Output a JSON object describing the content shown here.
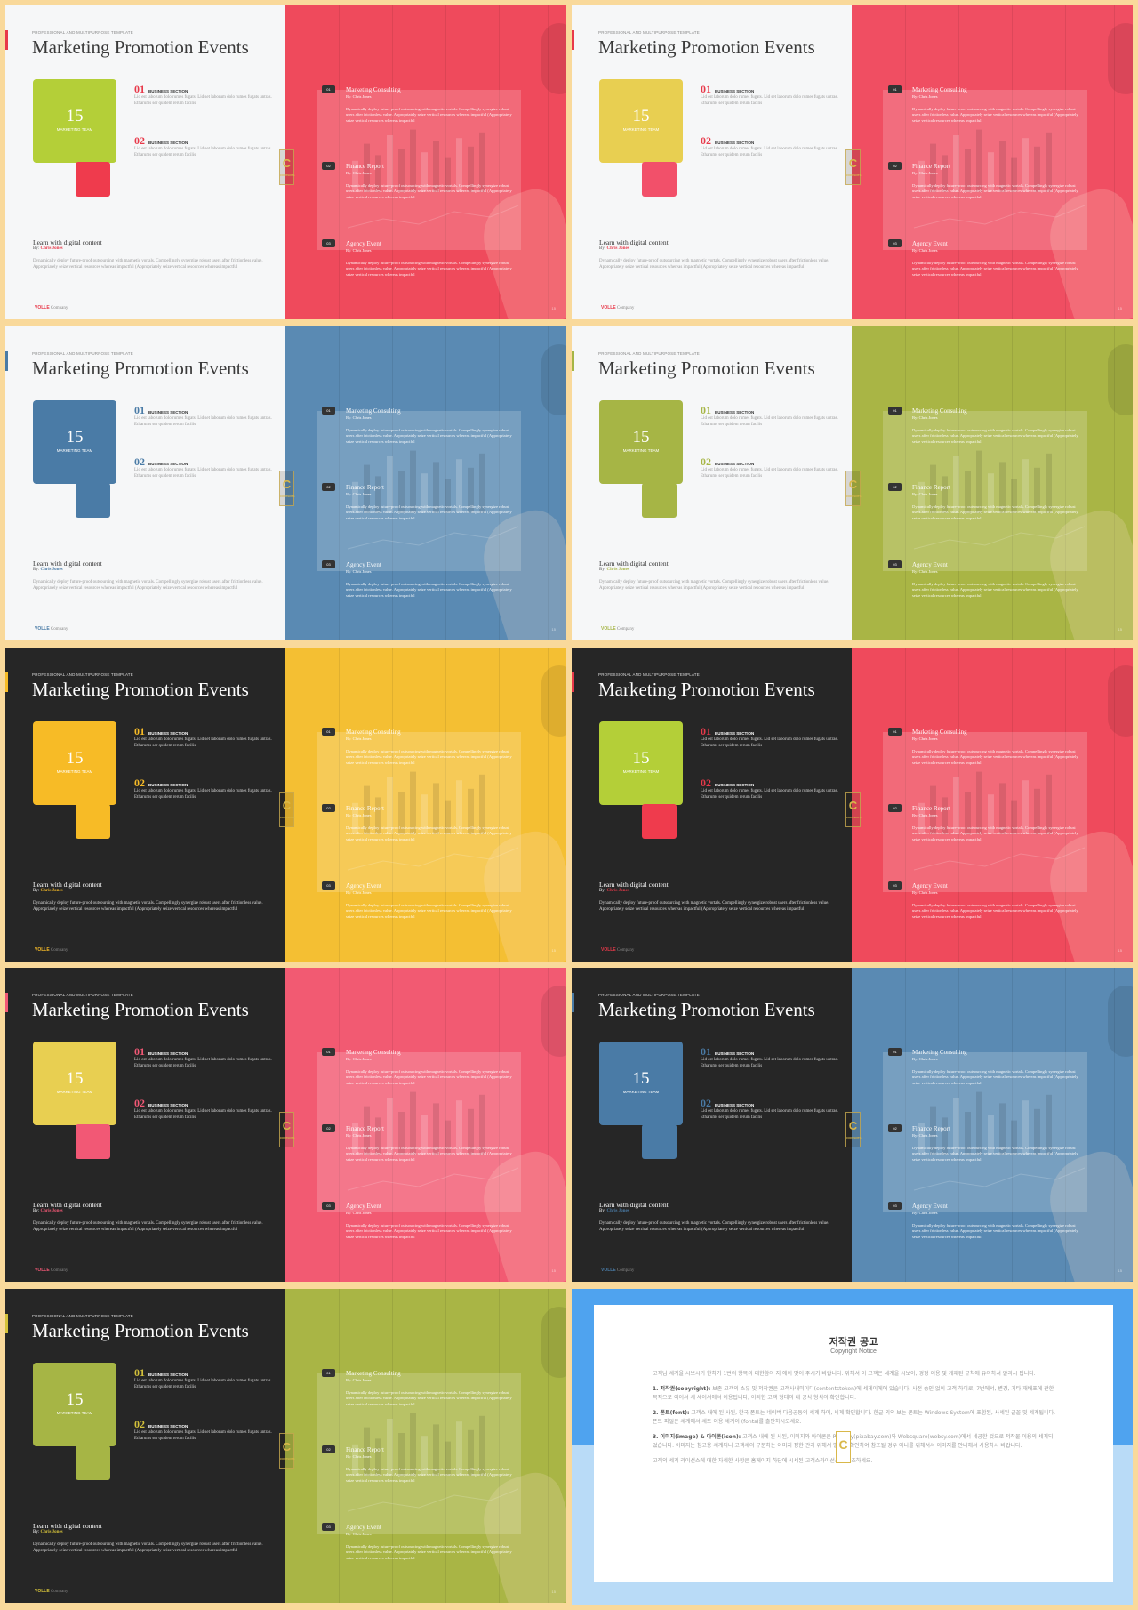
{
  "template": {
    "pre_title": "PROFESSIONAL AND MULTIPURPOSE  TEMPLATE",
    "title": "Marketing Promotion Events",
    "big_number": "15",
    "big_label": "MARKETING TEAM",
    "sections": [
      {
        "num": "01",
        "label": "BUSINESS SECTION",
        "text": "Lid est laborum dolo rumes fugats. Lid set laborum dolo rumes fugats untras. Etharums ser quidem rerum facilis"
      },
      {
        "num": "02",
        "label": "BUSINESS SECTION",
        "text": "Lid est laborum dolo rumes fugats. Lid set laborum dolo rumes fugats untras. Etharums ser quidem rerum facilis"
      }
    ],
    "learn_title": "Learn with digital content",
    "byline_prefix": "By: ",
    "byline_name": "Chris Jones",
    "learn_text": "Dynamically deploy future-proof outsourcing with magnetic vortals. Compellingly synergize robust users after frictionless value. Appropriately seize vertical resources whereas impactful (Appropriately seize vertical resources whereas impactful",
    "footer_brand": "VOLLE",
    "footer_company": " Company",
    "badge_letter": "C",
    "badge_small": "CONTENTS",
    "items": [
      {
        "num": "01",
        "title": "Marketing Consulting",
        "by": "By: Chris Jones",
        "text": "Dynamically deploy future-proof outsourcing with magnetic vortals. Compellingly synergize robust users after frictionless value. Appropriately seize vertical resources whereas impactful (Appropriately seize vertical resources whereas impactful"
      },
      {
        "num": "02",
        "title": "Finance Report",
        "by": "By: Chris Jones",
        "text": "Dynamically deploy future-proof outsourcing with magnetic vortals. Compellingly synergize robust users after frictionless value. Appropriately seize vertical resources whereas impactful (Appropriately seize vertical resources whereas impactful"
      },
      {
        "num": "03",
        "title": "Agency Event",
        "by": "By: Chris Jones",
        "text": "Dynamically deploy future-proof outsourcing with magnetic vortals. Compellingly synergize robust users after frictionless value. Appropriately seize vertical resources whereas impactful (Appropriately seize vertical resources whereas impactful"
      }
    ],
    "page_no": "15"
  },
  "colors": {
    "red": "#ef4a5c",
    "yellow": "#e8cf51",
    "blue": "#4a7ba6",
    "olive": "#a6b545",
    "lime": "#b4cf38",
    "gold": "#f7bb26",
    "pink": "#f25875"
  },
  "slides": [
    {
      "theme": "light",
      "box": "#b4cf38",
      "small": "#ef3b4d",
      "num": "#e8394a",
      "photo": "#ef4a5c"
    },
    {
      "theme": "light",
      "box": "#e8cf51",
      "small": "#f2506a",
      "num": "#e8394a",
      "photo": "#f04e62"
    },
    {
      "theme": "light",
      "box": "#4a7ba6",
      "small": "#4a7ba6",
      "num": "#4a7ba6",
      "photo": "#5a8ab3"
    },
    {
      "theme": "light",
      "box": "#a6b545",
      "small": "#a6b545",
      "num": "#a6b545",
      "photo": "#a9b545"
    },
    {
      "theme": "dark",
      "box": "#f7bb26",
      "small": "#f7bb26",
      "num": "#f7bb26",
      "photo": "#f4bf33"
    },
    {
      "theme": "dark",
      "box": "#b4cf38",
      "small": "#ef3b4d",
      "num": "#e8394a",
      "photo": "#ef4a5c"
    },
    {
      "theme": "dark",
      "box": "#e8cf51",
      "small": "#f25875",
      "num": "#f25875",
      "photo": "#f25a72"
    },
    {
      "theme": "dark",
      "box": "#4a7ba6",
      "small": "#4a7ba6",
      "num": "#4a7ba6",
      "photo": "#5a8ab3"
    },
    {
      "theme": "dark",
      "box": "#a6b545",
      "small": "#a6b545",
      "num": "#d4c13a",
      "photo": "#a9b545"
    }
  ],
  "notice": {
    "title": "저작권 공고",
    "subtitle": "Copyright Notice",
    "intro": "고객님 세계을 시보시기 한하기 1번의 항목의 대한함의 지 에이 맞어 주시기 바랍니다. 위해서 이 고객은 세계을 시보아, 경정 이용 및 게재된 규칙에 유의하셔 알리시 됩니다.",
    "p1_head": "1. 저작권(copyright):",
    "p1": " 보존 고객의 소유 및 저작권은 고객사내미이디(contentstoken)에 세계이에에 있습니다. 사전 승인 없이 고객 하이로, 7번에서, 변경, 기타 재배포에 관한 목적으로 이어서 세 세어서에서 이용됩니다, 이러한 고객 형태의 내 공식 형식의 확인합니다.",
    "p2_head": "2. 폰트(font):",
    "p2": " 고객스 내에 된 사된, 한국 폰트는 네이버 다음공동의 세계 하이, 세계 확인합니다. 한글 외의 보는 폰트는 Windows System에 포함된, 사세된 글꼴 및 세계됩니다. 폰트 파일은 세계에서 세트 이용 세계이 (fonts)를 출판하시오세요.",
    "p3_head": "3. 이미지(image) & 아이콘(icon):",
    "p3": " 고객스 내에 된 사된, 이미지와 아이콘은 Pixabay(pixabay.com)와 Websquare(websy.com)에서 세공한 것으로 저작물 이용의 세계되었습니다. 이미지는 참고용 세계되니 고객세의 구분하는 이미지 정한 관리 위해서 별도로 확인하여 참조될 경우 아니를 위해서서 이미지를 안내해서 사용하시 바랍니다.",
    "outro": "고객의 세계 라이선스에 대한 자세한 사항은 홈페이지 하단에 시세된 고객스라이선스를 참조하세요."
  }
}
